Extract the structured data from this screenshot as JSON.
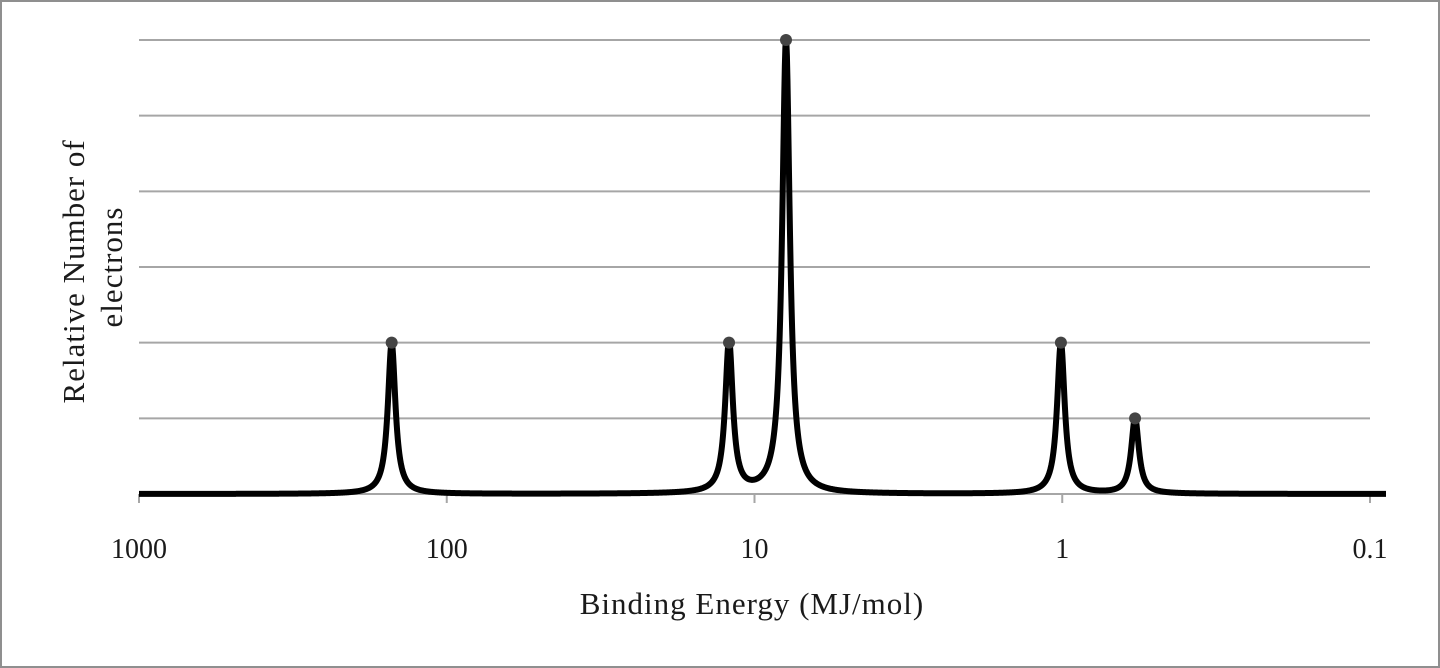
{
  "chart_data": {
    "type": "line",
    "xlabel": "Binding Energy (MJ/mol)",
    "ylabel_lines": [
      "Relative Number of",
      "electrons"
    ],
    "x_scale": "log",
    "x_reversed": true,
    "xlim": [
      1000,
      0.1
    ],
    "x_ticks": [
      "1000",
      "100",
      "10",
      "1",
      "0.1"
    ],
    "ylim": [
      0,
      6
    ],
    "y_gridlines": [
      1,
      2,
      3,
      4,
      5,
      6
    ],
    "y_tick_labels_shown": false,
    "grid": true,
    "peaks": [
      {
        "x": 151,
        "y": 2
      },
      {
        "x": 12.1,
        "y": 2
      },
      {
        "x": 7.9,
        "y": 6
      },
      {
        "x": 1.01,
        "y": 2
      },
      {
        "x": 0.58,
        "y": 1
      }
    ],
    "colors": {
      "line": "#000000",
      "grid": "#a6a6a6",
      "marker": "#444444"
    }
  }
}
